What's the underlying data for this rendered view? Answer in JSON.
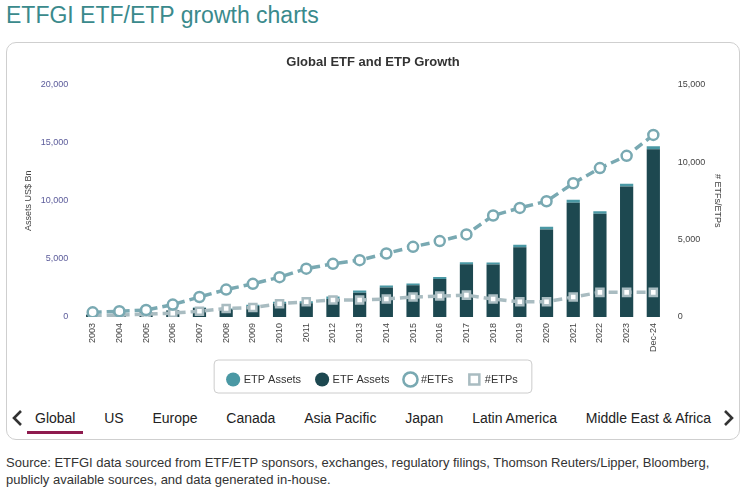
{
  "header": {
    "title": "ETFGI ETF/ETP growth charts"
  },
  "chart_data": {
    "type": "bar",
    "title": "Global ETF and ETP Growth",
    "categories": [
      "2003",
      "2004",
      "2005",
      "2006",
      "2007",
      "2008",
      "2009",
      "2010",
      "2011",
      "2012",
      "2013",
      "2014",
      "2015",
      "2016",
      "2017",
      "2018",
      "2019",
      "2020",
      "2021",
      "2022",
      "2023",
      "Dec-24"
    ],
    "series": [
      {
        "name": "ETP Assets",
        "type": "bar",
        "color": "#4a98a4",
        "values": [
          5,
          8,
          15,
          25,
          45,
          60,
          110,
          160,
          170,
          220,
          190,
          160,
          150,
          170,
          170,
          160,
          210,
          250,
          260,
          220,
          230,
          260
        ]
      },
      {
        "name": "ETF Assets",
        "type": "bar",
        "color": "#1d4850",
        "values": [
          200,
          300,
          400,
          560,
          770,
          660,
          940,
          1160,
          1190,
          1540,
          2090,
          2540,
          2740,
          3270,
          4540,
          4520,
          6000,
          7520,
          9840,
          8890,
          11230,
          14430
        ]
      },
      {
        "name": "#ETFs",
        "type": "line",
        "color": "#79a9b2",
        "marker": "circle",
        "line_style": "dashed",
        "axis": "y2",
        "values": [
          300,
          370,
          450,
          800,
          1290,
          1770,
          2140,
          2570,
          3120,
          3430,
          3670,
          4100,
          4530,
          4900,
          5330,
          6550,
          7040,
          7470,
          8630,
          9610,
          10400,
          11750
        ]
      },
      {
        "name": "#ETPs",
        "type": "line",
        "color": "#a9bcc1",
        "marker": "square",
        "line_style": "dashed",
        "axis": "y2",
        "values": [
          60,
          120,
          180,
          250,
          370,
          550,
          610,
          860,
          980,
          1100,
          1100,
          1160,
          1290,
          1350,
          1410,
          1160,
          980,
          980,
          1290,
          1590,
          1590,
          1590
        ]
      }
    ],
    "stacked": true,
    "grid": false,
    "legend": "bottom",
    "ylabel": "Assets US$ Bn",
    "y2label": "# ETFs/ETPs",
    "ylim": [
      0,
      20000
    ],
    "yticks": [
      0,
      {
        "value": 5000,
        "label": "5,000"
      },
      {
        "value": 10000,
        "label": "10,000"
      },
      {
        "value": 15000,
        "label": "15,000"
      },
      {
        "value": 20000,
        "label": "20,000"
      }
    ],
    "y2lim": [
      0,
      15000
    ],
    "y2ticks": [
      0,
      {
        "value": 5000,
        "label": "5,000"
      },
      {
        "value": 10000,
        "label": "10,000"
      },
      {
        "value": 15000,
        "label": "15,000"
      }
    ]
  },
  "tabs": {
    "items": [
      "Global",
      "US",
      "Europe",
      "Canada",
      "Asia Pacific",
      "Japan",
      "Latin America",
      "Middle East & Africa"
    ],
    "selected": "Global"
  },
  "source": "Source: ETFGI data sourced from ETF/ETP sponsors, exchanges, regulatory filings, Thomson Reuters/Lipper, Bloomberg, publicly available sources, and data generated in-house."
}
